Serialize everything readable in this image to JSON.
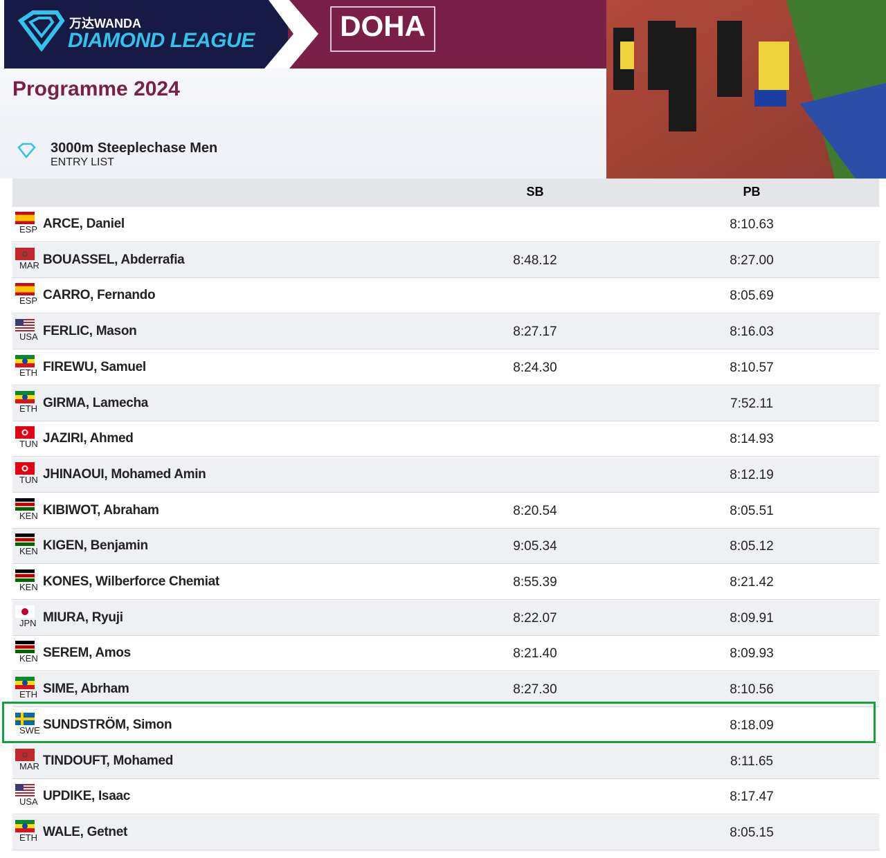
{
  "header": {
    "brand_small": "万达WANDA",
    "brand": "DIAMOND LEAGUE",
    "meeting": "DOHA",
    "programme": "Programme 2024"
  },
  "event": {
    "title": "3000m Steeplechase Men",
    "subtitle": "ENTRY LIST"
  },
  "table": {
    "columns": [
      "SB",
      "PB"
    ],
    "rows": [
      [
        "ESP",
        "ARCE, Daniel",
        null,
        "8:10.63"
      ],
      [
        "MAR",
        "BOUASSEL, Abderrafia",
        "8:48.12",
        "8:27.00"
      ],
      [
        "ESP",
        "CARRO, Fernando",
        null,
        "8:05.69"
      ],
      [
        "USA",
        "FERLIC, Mason",
        "8:27.17",
        "8:16.03"
      ],
      [
        "ETH",
        "FIREWU, Samuel",
        "8:24.30",
        "8:10.57"
      ],
      [
        "ETH",
        "GIRMA, Lamecha",
        null,
        "7:52.11"
      ],
      [
        "TUN",
        "JAZIRI, Ahmed",
        null,
        "8:14.93"
      ],
      [
        "TUN",
        "JHINAOUI, Mohamed Amin",
        null,
        "8:12.19"
      ],
      [
        "KEN",
        "KIBIWOT, Abraham",
        "8:20.54",
        "8:05.51"
      ],
      [
        "KEN",
        "KIGEN, Benjamin",
        "9:05.34",
        "8:05.12"
      ],
      [
        "KEN",
        "KONES, Wilberforce Chemiat",
        "8:55.39",
        "8:21.42"
      ],
      [
        "JPN",
        "MIURA, Ryuji",
        "8:22.07",
        "8:09.91"
      ],
      [
        "KEN",
        "SEREM, Amos",
        "8:21.40",
        "8:09.93"
      ],
      [
        "ETH",
        "SIME, Abrham",
        "8:27.30",
        "8:10.56"
      ],
      [
        "SWE",
        "SUNDSTRÖM, Simon",
        null,
        "8:18.09"
      ],
      [
        "MAR",
        "TINDOUFT, Mohamed",
        null,
        "8:11.65"
      ],
      [
        "USA",
        "UPDIKE, Isaac",
        null,
        "8:17.47"
      ],
      [
        "ETH",
        "WALE, Getnet",
        null,
        "8:05.15"
      ]
    ]
  }
}
